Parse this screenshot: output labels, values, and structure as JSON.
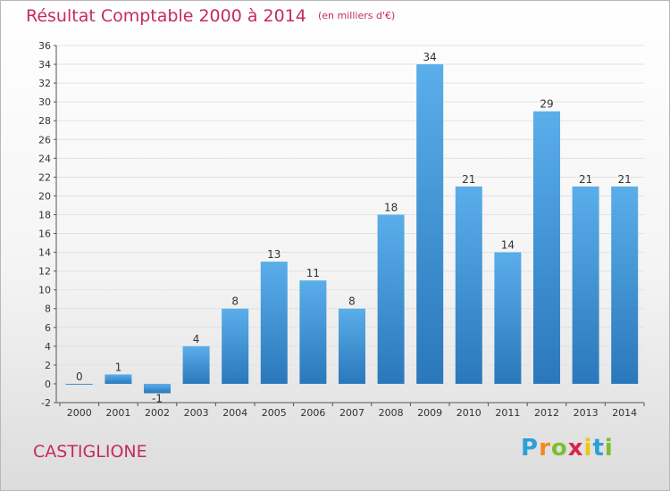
{
  "title": "Résultat Comptable 2000 à 2014",
  "subtitle": "(en milliers d'€)",
  "commune": "CASTIGLIONE",
  "logo_text": "Proxiti",
  "colors": {
    "title": "#c72a5d",
    "bar_light": "#5aaeea",
    "bar_dark": "#2d7cbf",
    "gridline": "#e4e4e4",
    "axis": "#444444"
  },
  "chart_data": {
    "type": "bar",
    "title": "Résultat Comptable 2000 à 2014",
    "xlabel": "",
    "ylabel": "",
    "ylim": [
      -2,
      36
    ],
    "y_ticks": [
      -2,
      0,
      2,
      4,
      6,
      8,
      10,
      12,
      14,
      16,
      18,
      20,
      22,
      24,
      26,
      28,
      30,
      32,
      34,
      36
    ],
    "grid": true,
    "categories": [
      "2000",
      "2001",
      "2002",
      "2003",
      "2004",
      "2005",
      "2006",
      "2007",
      "2008",
      "2009",
      "2010",
      "2011",
      "2012",
      "2013",
      "2014"
    ],
    "values": [
      0,
      1,
      -1,
      4,
      8,
      13,
      11,
      8,
      18,
      34,
      21,
      14,
      29,
      21,
      21
    ]
  }
}
